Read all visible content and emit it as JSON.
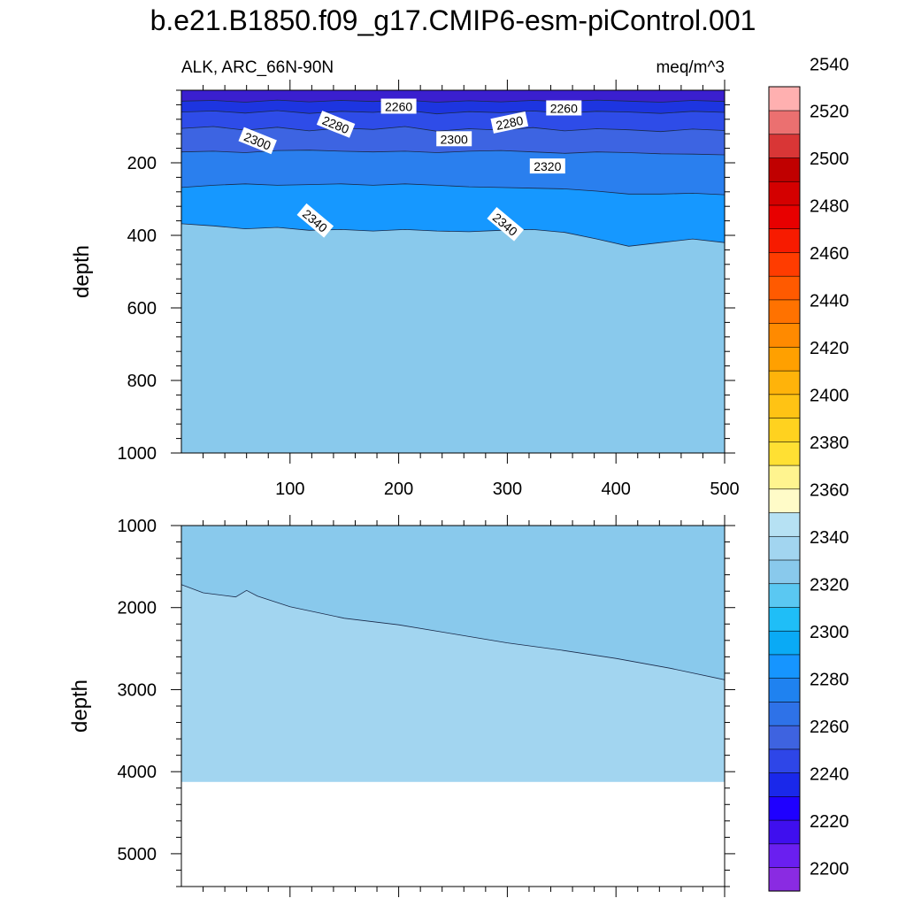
{
  "chart_data": {
    "type": "heatmap",
    "title": "b.e21.B1850.f09_g17.CMIP6-esm-piControl.001",
    "variable_label": "ALK, ARC_66N-90N",
    "units_label": "meq/m^3",
    "x": {
      "range": [
        0,
        500
      ],
      "ticks": [
        100,
        200,
        300,
        400,
        500
      ]
    },
    "panels": [
      {
        "ylabel": "depth",
        "ylim": [
          0,
          1000
        ],
        "yticks": [
          200,
          400,
          600,
          800,
          1000
        ],
        "fill_bands": [
          {
            "upper_level": 2200,
            "color": "#3a1fcf"
          },
          {
            "upper_level": 2220,
            "color": "#1d35e0"
          },
          {
            "upper_level": 2240,
            "color": "#2e4ce8"
          },
          {
            "upper_level": 2260,
            "color": "#3d64e2"
          },
          {
            "upper_level": 2280,
            "color": "#2a7fee"
          },
          {
            "upper_level": 2300,
            "color": "#1698ff"
          },
          {
            "upper_level": 2320,
            "color": "#13b3f5"
          },
          {
            "upper_level": 2340,
            "color": "#5ac8f2"
          }
        ],
        "below_last_color": "#89c9ec",
        "contours": [
          {
            "level": 2260,
            "depth": [
              30,
              28,
              33,
              27,
              32,
              28,
              31,
              27,
              33,
              29,
              32,
              28,
              31,
              27,
              30,
              33,
              28,
              31
            ]
          },
          {
            "level": 2280,
            "depth": [
              60,
              57,
              63,
              56,
              64,
              58,
              61,
              55,
              65,
              59,
              62,
              57,
              63,
              58,
              60,
              64,
              58,
              61
            ]
          },
          {
            "level": 2300,
            "depth": [
              105,
              100,
              110,
              102,
              112,
              104,
              108,
              100,
              113,
              106,
              110,
              103,
              112,
              106,
              109,
              114,
              107,
              111
            ]
          },
          {
            "level": 2320,
            "depth": [
              170,
              168,
              172,
              166,
              165,
              168,
              170,
              168,
              172,
              168,
              166,
              170,
              174,
              170,
              172,
              175,
              176,
              178
            ]
          },
          {
            "level": 2340,
            "depth": [
              268,
              262,
              258,
              262,
              260,
              258,
              262,
              258,
              262,
              266,
              268,
              270,
              272,
              278,
              286,
              286,
              284,
              288
            ]
          },
          {
            "level": 2360,
            "depth": [
              368,
              374,
              382,
              378,
              386,
              384,
              388,
              384,
              388,
              390,
              386,
              384,
              392,
              410,
              430,
              420,
              410,
              420
            ]
          }
        ],
        "contour_labels": [
          {
            "text": "2260",
            "x": 200,
            "depth": 45
          },
          {
            "text": "2260",
            "x": 352,
            "depth": 50
          },
          {
            "text": "2280",
            "x": 142,
            "depth": 95
          },
          {
            "text": "2280",
            "x": 302,
            "depth": 90
          },
          {
            "text": "2300",
            "x": 70,
            "depth": 140
          },
          {
            "text": "2300",
            "x": 251,
            "depth": 135
          },
          {
            "text": "2320",
            "x": 337,
            "depth": 210
          },
          {
            "text": "2340",
            "x": 123,
            "depth": 360
          },
          {
            "text": "2340",
            "x": 298,
            "depth": 370
          }
        ]
      },
      {
        "ylabel": "depth",
        "ylim": [
          1000,
          5400
        ],
        "yticks": [
          1000,
          2000,
          3000,
          4000,
          5000
        ],
        "fill_bands": [
          {
            "upper_level": 2360,
            "color": "#89c9ec"
          }
        ],
        "below_last_color": "#a2d5f0",
        "ocean_floor_depth": 4125,
        "contours": [
          {
            "level": 2360,
            "x": [
              0,
              20,
              50,
              60,
              70,
              100,
              150,
              200,
              250,
              300,
              350,
              400,
              450,
              500
            ],
            "depth": [
              1720,
              1820,
              1870,
              1790,
              1860,
              1990,
              2130,
              2210,
              2320,
              2430,
              2520,
              2620,
              2740,
              2880
            ]
          }
        ]
      }
    ],
    "colorbar": {
      "colors": [
        "#8a2be2",
        "#6a1ff0",
        "#3f0fee",
        "#1f00ff",
        "#1a28ea",
        "#2e46e8",
        "#3e63e0",
        "#2e72e8",
        "#1f82f0",
        "#1695ff",
        "#0aaaf5",
        "#1fbef7",
        "#5ac8f2",
        "#89c9ec",
        "#a2d5f0",
        "#b6e1f3",
        "#fffbc8",
        "#fff48f",
        "#ffe033",
        "#ffd21f",
        "#ffc314",
        "#ffb30a",
        "#ffa000",
        "#ff8a00",
        "#ff7200",
        "#ff5a00",
        "#ff3c00",
        "#f71b00",
        "#e80000",
        "#d40000",
        "#c00000",
        "#d93636",
        "#eb7070",
        "#ffb0b0"
      ],
      "tick_labels": [
        "2200",
        "2220",
        "2240",
        "2260",
        "2280",
        "2300",
        "2320",
        "2340",
        "2360",
        "2380",
        "2400",
        "2420",
        "2440",
        "2460",
        "2480",
        "2500",
        "2520",
        "2540"
      ]
    }
  }
}
